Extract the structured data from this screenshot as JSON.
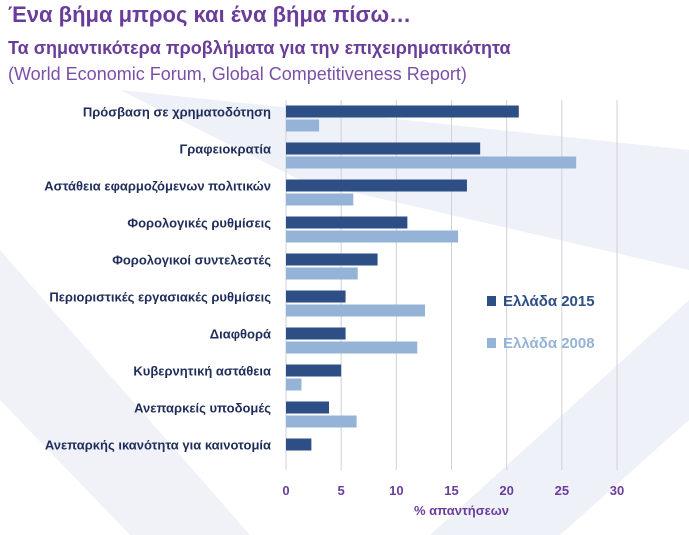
{
  "header": {
    "title": "Ένα βήμα μπρος και ένα βήμα πίσω…",
    "subtitle": "Τα σημαντικότερα προβλήματα για την επιχειρηματικότητα",
    "source": "(World Economic Forum, Global Competitiveness Report)"
  },
  "chart_data": {
    "type": "bar",
    "orientation": "horizontal",
    "categories": [
      "Πρόσβαση σε χρηματοδότηση",
      "Γραφειοκρατία",
      "Αστάθεια εφαρμοζόμενων πολιτικών",
      "Φορολογικές ρυθμίσεις",
      "Φορολογικοί συντελεστές",
      "Περιοριστικές εργασιακές ρυθμίσεις",
      "Διαφθορά",
      "Κυβερνητική αστάθεια",
      "Ανεπαρκείς υποδομές",
      "Ανεπαρκής ικανότητα για καινοτομία"
    ],
    "series": [
      {
        "name": "Ελλάδα 2015",
        "color": "#2e4f86",
        "values": [
          21.1,
          17.6,
          16.4,
          11.0,
          8.3,
          5.4,
          5.4,
          5.0,
          3.9,
          2.3
        ]
      },
      {
        "name": "Ελλάδα 2008",
        "color": "#95b3d7",
        "values": [
          3.0,
          26.3,
          6.1,
          15.6,
          6.5,
          12.6,
          11.9,
          1.4,
          6.4,
          0
        ]
      }
    ],
    "xlabel": "% απαντήσεων",
    "xlim": [
      0,
      30
    ],
    "xticks": [
      0,
      5,
      10,
      15,
      20,
      25,
      30
    ],
    "grid": true,
    "legend_position": "right"
  }
}
